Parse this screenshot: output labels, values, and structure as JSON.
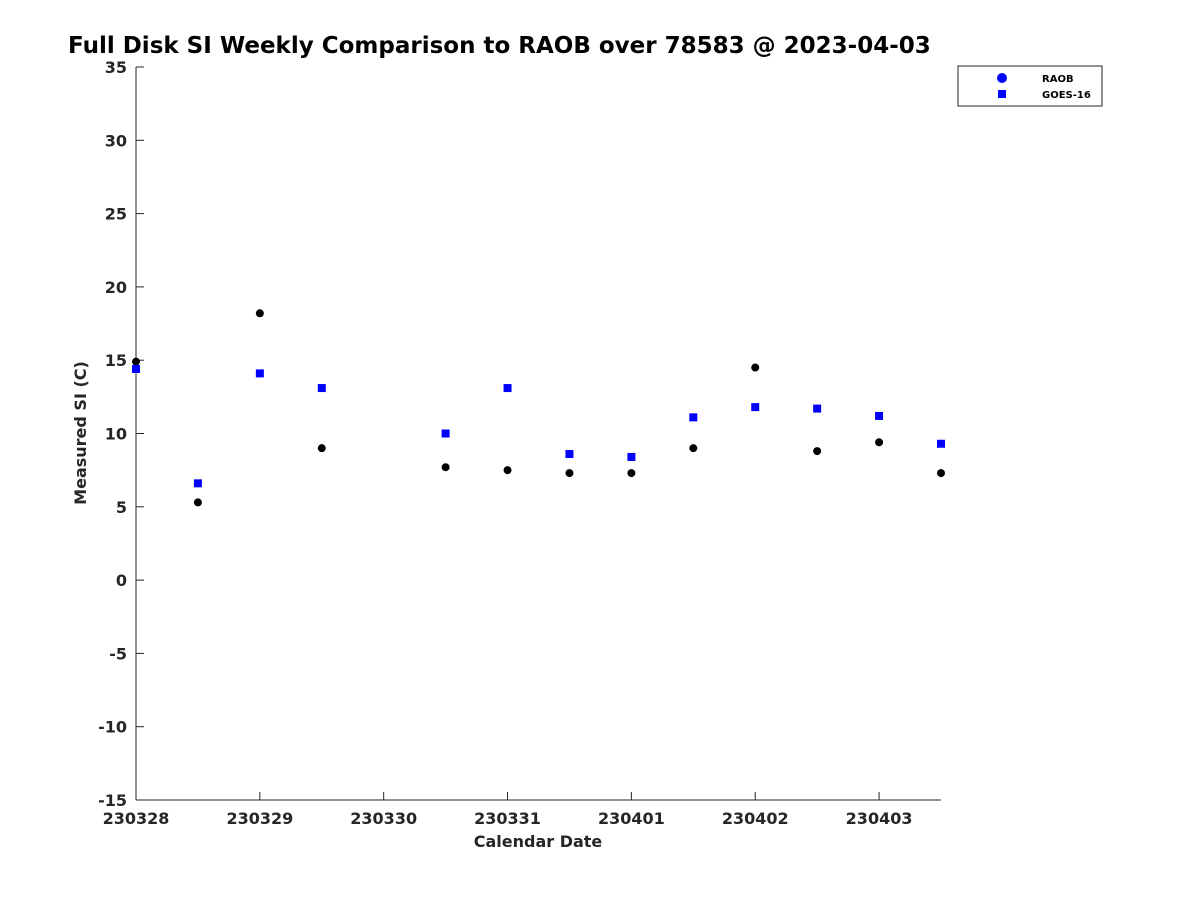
{
  "chart_data": {
    "type": "scatter",
    "title": "Full Disk SI Weekly Comparison to RAOB over 78583 @ 2023-04-03",
    "xlabel": "Calendar Date",
    "ylabel": "Measured SI (C)",
    "xlim": [
      "2023-03-28T00:00",
      "2023-04-03T12:00"
    ],
    "ylim": [
      -15,
      35
    ],
    "yticks": [
      -15,
      -10,
      -5,
      0,
      5,
      10,
      15,
      20,
      25,
      30,
      35
    ],
    "xticks": [
      {
        "date": "2023-03-28T00:00",
        "label": "230328"
      },
      {
        "date": "2023-03-29T00:00",
        "label": "230329"
      },
      {
        "date": "2023-03-30T00:00",
        "label": "230330"
      },
      {
        "date": "2023-03-31T00:00",
        "label": "230331"
      },
      {
        "date": "2023-04-01T00:00",
        "label": "230401"
      },
      {
        "date": "2023-04-02T00:00",
        "label": "230402"
      },
      {
        "date": "2023-04-03T00:00",
        "label": "230403"
      }
    ],
    "grid": false,
    "legend": "top-right",
    "series": [
      {
        "name": "RAOB",
        "marker": "circle",
        "color": "#000000",
        "legend_color": "#0000ff",
        "points": [
          {
            "x": "2023-03-28T00:00",
            "y": 14.9
          },
          {
            "x": "2023-03-28T12:00",
            "y": 5.3
          },
          {
            "x": "2023-03-29T00:00",
            "y": 18.2
          },
          {
            "x": "2023-03-29T12:00",
            "y": 9.0
          },
          {
            "x": "2023-03-30T12:00",
            "y": 7.7
          },
          {
            "x": "2023-03-31T00:00",
            "y": 7.5
          },
          {
            "x": "2023-03-31T12:00",
            "y": 7.3
          },
          {
            "x": "2023-04-01T00:00",
            "y": 7.3
          },
          {
            "x": "2023-04-01T12:00",
            "y": 9.0
          },
          {
            "x": "2023-04-02T00:00",
            "y": 14.5
          },
          {
            "x": "2023-04-02T12:00",
            "y": 8.8
          },
          {
            "x": "2023-04-03T00:00",
            "y": 9.4
          },
          {
            "x": "2023-04-03T12:00",
            "y": 7.3
          }
        ]
      },
      {
        "name": "GOES-16",
        "marker": "square",
        "color": "#0000ff",
        "points": [
          {
            "x": "2023-03-28T00:00",
            "y": 14.4
          },
          {
            "x": "2023-03-28T12:00",
            "y": 6.6
          },
          {
            "x": "2023-03-29T00:00",
            "y": 14.1
          },
          {
            "x": "2023-03-29T12:00",
            "y": 13.1
          },
          {
            "x": "2023-03-30T12:00",
            "y": 10.0
          },
          {
            "x": "2023-03-31T00:00",
            "y": 13.1
          },
          {
            "x": "2023-03-31T12:00",
            "y": 8.6
          },
          {
            "x": "2023-04-01T00:00",
            "y": 8.4
          },
          {
            "x": "2023-04-01T12:00",
            "y": 11.1
          },
          {
            "x": "2023-04-02T00:00",
            "y": 11.8
          },
          {
            "x": "2023-04-02T12:00",
            "y": 11.7
          },
          {
            "x": "2023-04-03T00:00",
            "y": 11.2
          },
          {
            "x": "2023-04-03T12:00",
            "y": 9.3
          }
        ]
      }
    ]
  }
}
